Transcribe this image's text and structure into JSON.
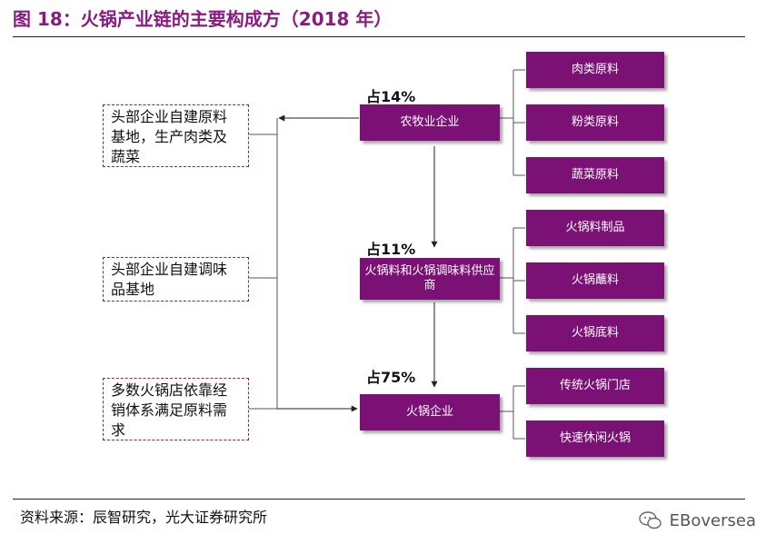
{
  "figure": {
    "title": "图 18：火锅产业链的主要构成方（2018 年）",
    "source": "资料来源：辰智研究，光大证券研究所",
    "watermark": "EBoversea"
  },
  "notes": {
    "farm": "头部企业自建原料基地，生产肉类及蔬菜",
    "seasoning": "头部企业自建调味品基地",
    "store": "多数火锅店依靠经销体系满足原料需求"
  },
  "stages": {
    "agri": {
      "label": "农牧业企业",
      "share": "占14%"
    },
    "supplier": {
      "label": "火锅料和火锅调味料供应商",
      "share": "占11%"
    },
    "restaurant": {
      "label": "火锅企业",
      "share": "占75%"
    }
  },
  "children": {
    "agri": [
      "肉类原料",
      "粉类原料",
      "蔬菜原料"
    ],
    "supplier": [
      "火锅料制品",
      "火锅蘸料",
      "火锅底料"
    ],
    "restaurant": [
      "传统火锅门店",
      "快速休闲火锅"
    ]
  },
  "colors": {
    "box": "#7b1174",
    "accent": "#8b1a82",
    "line": "#555555"
  }
}
